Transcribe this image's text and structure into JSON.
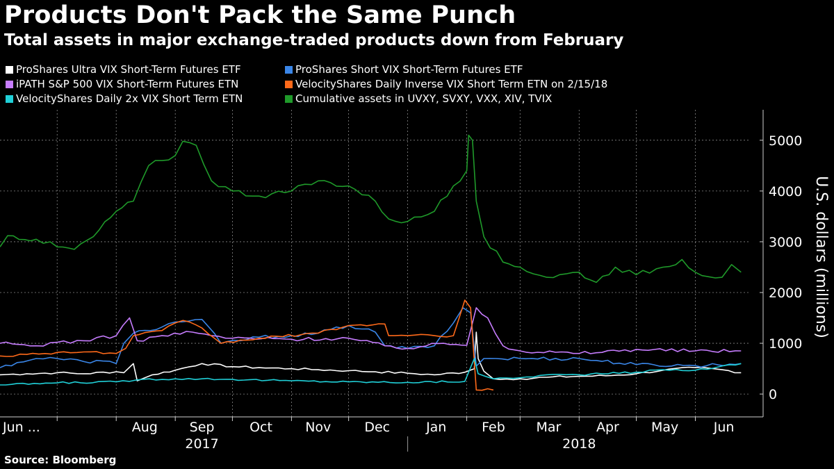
{
  "title": "Products Don't Pack the Same Punch",
  "subtitle": "Total assets in major exchange-traded products down from February",
  "source": "Source: Bloomberg",
  "legend": [
    {
      "label": "ProShares Ultra VIX Short-Term Futures ETF",
      "color": "#ffffff"
    },
    {
      "label": "ProShares Short VIX Short-Term Futures ETF",
      "color": "#3a86e8"
    },
    {
      "label": "iPATH S&P 500 VIX Short-Term Futures ETN",
      "color": "#c77dff"
    },
    {
      "label": "VelocityShares Daily Inverse VIX Short Term ETN  on 2/15/18",
      "color": "#ff6a1a"
    },
    {
      "label": "VelocityShares Daily 2x VIX Short Term ETN",
      "color": "#20d0d8"
    },
    {
      "label": "Cumulative assets in UVXY, SVXY, VXX, XIV, TVIX",
      "color": "#1f9a2a"
    }
  ],
  "chart_data": {
    "type": "line",
    "title": "Products Don't Pack the Same Punch",
    "subtitle": "Total assets in major exchange-traded products down from February",
    "ylabel": "U.S. dollars (millions)",
    "ylim": [
      -450,
      5600
    ],
    "yticks": [
      0,
      1000,
      2000,
      3000,
      4000,
      5000
    ],
    "x_range": [
      "2017-06-01",
      "2018-06-30"
    ],
    "x_tick_labels": [
      "Jun ...",
      "Aug",
      "Sep",
      "Oct",
      "Nov",
      "Dec",
      "Jan",
      "Feb",
      "Mar",
      "Apr",
      "May",
      "Jun"
    ],
    "x_tick_dates": [
      "2017-06-01",
      "2017-08-16",
      "2017-09-15",
      "2017-10-16",
      "2017-11-15",
      "2017-12-16",
      "2018-01-16",
      "2018-02-15",
      "2018-03-16",
      "2018-04-16",
      "2018-05-16",
      "2018-06-16"
    ],
    "x_boundaries": [
      "2017-07-01",
      "2017-08-01",
      "2017-09-01",
      "2017-10-01",
      "2017-11-01",
      "2017-12-01",
      "2018-01-01",
      "2018-02-01",
      "2018-03-01",
      "2018-04-01",
      "2018-05-01",
      "2018-06-01"
    ],
    "year_labels": [
      {
        "label": "2017",
        "date": "2017-09-15"
      },
      {
        "label": "2018",
        "date": "2018-04-01"
      }
    ],
    "year_divider": "2018-01-01",
    "grid": true,
    "legend_position": "top-left",
    "series": [
      {
        "name": "ProShares Ultra VIX Short-Term Futures ETF",
        "color": "#ffffff",
        "points": [
          [
            "2017-06-01",
            380
          ],
          [
            "2017-06-15",
            400
          ],
          [
            "2017-07-01",
            420
          ],
          [
            "2017-07-15",
            400
          ],
          [
            "2017-08-01",
            440
          ],
          [
            "2017-08-05",
            420
          ],
          [
            "2017-08-10",
            600
          ],
          [
            "2017-08-12",
            260
          ],
          [
            "2017-08-20",
            380
          ],
          [
            "2017-09-01",
            470
          ],
          [
            "2017-09-15",
            600
          ],
          [
            "2017-10-01",
            540
          ],
          [
            "2017-10-15",
            520
          ],
          [
            "2017-11-01",
            500
          ],
          [
            "2017-11-15",
            480
          ],
          [
            "2017-12-01",
            460
          ],
          [
            "2017-12-15",
            440
          ],
          [
            "2018-01-01",
            410
          ],
          [
            "2018-01-15",
            380
          ],
          [
            "2018-01-31",
            430
          ],
          [
            "2018-02-05",
            500
          ],
          [
            "2018-02-06",
            1220
          ],
          [
            "2018-02-07",
            700
          ],
          [
            "2018-02-10",
            450
          ],
          [
            "2018-02-15",
            300
          ],
          [
            "2018-03-01",
            300
          ],
          [
            "2018-03-15",
            330
          ],
          [
            "2018-04-01",
            350
          ],
          [
            "2018-04-15",
            360
          ],
          [
            "2018-05-01",
            400
          ],
          [
            "2018-05-15",
            470
          ],
          [
            "2018-06-01",
            520
          ],
          [
            "2018-06-15",
            480
          ],
          [
            "2018-06-25",
            420
          ]
        ]
      },
      {
        "name": "ProShares Short VIX Short-Term Futures ETF",
        "color": "#3a86e8",
        "points": [
          [
            "2017-06-01",
            520
          ],
          [
            "2017-06-10",
            620
          ],
          [
            "2017-06-20",
            700
          ],
          [
            "2017-07-01",
            700
          ],
          [
            "2017-07-15",
            640
          ],
          [
            "2017-07-25",
            650
          ],
          [
            "2017-08-01",
            600
          ],
          [
            "2017-08-05",
            1000
          ],
          [
            "2017-08-10",
            1200
          ],
          [
            "2017-08-25",
            1320
          ],
          [
            "2017-09-01",
            1420
          ],
          [
            "2017-09-15",
            1470
          ],
          [
            "2017-09-25",
            1000
          ],
          [
            "2017-10-15",
            1120
          ],
          [
            "2017-11-01",
            1150
          ],
          [
            "2017-11-15",
            1200
          ],
          [
            "2017-12-01",
            1350
          ],
          [
            "2017-12-15",
            1220
          ],
          [
            "2017-12-20",
            950
          ],
          [
            "2018-01-01",
            900
          ],
          [
            "2018-01-15",
            950
          ],
          [
            "2018-01-25",
            1400
          ],
          [
            "2018-01-30",
            1700
          ],
          [
            "2018-02-03",
            1600
          ],
          [
            "2018-02-06",
            550
          ],
          [
            "2018-02-10",
            700
          ],
          [
            "2018-03-01",
            700
          ],
          [
            "2018-04-01",
            700
          ],
          [
            "2018-05-01",
            580
          ],
          [
            "2018-06-01",
            560
          ],
          [
            "2018-06-25",
            600
          ]
        ]
      },
      {
        "name": "iPATH S&P 500 VIX Short-Term Futures ETN",
        "color": "#c77dff",
        "points": [
          [
            "2017-06-01",
            1000
          ],
          [
            "2017-06-20",
            950
          ],
          [
            "2017-07-01",
            1020
          ],
          [
            "2017-07-15",
            1050
          ],
          [
            "2017-08-01",
            1150
          ],
          [
            "2017-08-08",
            1500
          ],
          [
            "2017-08-12",
            1050
          ],
          [
            "2017-08-25",
            1150
          ],
          [
            "2017-09-10",
            1220
          ],
          [
            "2017-09-20",
            1150
          ],
          [
            "2017-10-01",
            1100
          ],
          [
            "2017-11-01",
            1080
          ],
          [
            "2017-12-01",
            1100
          ],
          [
            "2017-12-20",
            950
          ],
          [
            "2018-01-01",
            900
          ],
          [
            "2018-01-20",
            1000
          ],
          [
            "2018-02-01",
            960
          ],
          [
            "2018-02-06",
            1700
          ],
          [
            "2018-02-12",
            1500
          ],
          [
            "2018-02-20",
            950
          ],
          [
            "2018-03-01",
            850
          ],
          [
            "2018-04-01",
            800
          ],
          [
            "2018-05-01",
            880
          ],
          [
            "2018-06-01",
            850
          ],
          [
            "2018-06-25",
            850
          ]
        ]
      },
      {
        "name": "VelocityShares Daily Inverse VIX Short Term ETN  on 2/15/18",
        "color": "#ff6a1a",
        "points": [
          [
            "2017-06-01",
            750
          ],
          [
            "2017-06-15",
            780
          ],
          [
            "2017-07-01",
            820
          ],
          [
            "2017-07-15",
            830
          ],
          [
            "2017-08-01",
            800
          ],
          [
            "2017-08-06",
            900
          ],
          [
            "2017-08-10",
            1150
          ],
          [
            "2017-08-25",
            1250
          ],
          [
            "2017-09-05",
            1450
          ],
          [
            "2017-09-15",
            1300
          ],
          [
            "2017-09-25",
            1000
          ],
          [
            "2017-10-15",
            1100
          ],
          [
            "2017-11-15",
            1200
          ],
          [
            "2017-12-01",
            1350
          ],
          [
            "2017-12-20",
            1380
          ],
          [
            "2017-12-22",
            1150
          ],
          [
            "2018-01-01",
            1150
          ],
          [
            "2018-01-15",
            1150
          ],
          [
            "2018-01-25",
            1150
          ],
          [
            "2018-01-31",
            1850
          ],
          [
            "2018-02-03",
            1700
          ],
          [
            "2018-02-06",
            80
          ],
          [
            "2018-02-15",
            80
          ]
        ]
      },
      {
        "name": "VelocityShares Daily 2x VIX Short Term ETN",
        "color": "#20d0d8",
        "points": [
          [
            "2017-06-01",
            180
          ],
          [
            "2017-07-01",
            220
          ],
          [
            "2017-08-01",
            240
          ],
          [
            "2017-08-15",
            290
          ],
          [
            "2017-09-01",
            300
          ],
          [
            "2017-09-15",
            300
          ],
          [
            "2017-10-01",
            290
          ],
          [
            "2017-11-01",
            260
          ],
          [
            "2017-12-01",
            240
          ],
          [
            "2018-01-01",
            230
          ],
          [
            "2018-01-31",
            250
          ],
          [
            "2018-02-05",
            700
          ],
          [
            "2018-02-07",
            400
          ],
          [
            "2018-02-15",
            300
          ],
          [
            "2018-03-01",
            320
          ],
          [
            "2018-03-15",
            380
          ],
          [
            "2018-04-01",
            380
          ],
          [
            "2018-05-01",
            430
          ],
          [
            "2018-05-15",
            480
          ],
          [
            "2018-06-01",
            470
          ],
          [
            "2018-06-25",
            600
          ]
        ]
      },
      {
        "name": "Cumulative assets in UVXY, SVXY, VXX, XIV, TVIX",
        "color": "#1f9a2a",
        "points": [
          [
            "2017-06-01",
            2900
          ],
          [
            "2017-06-05",
            3120
          ],
          [
            "2017-06-20",
            3050
          ],
          [
            "2017-07-01",
            2900
          ],
          [
            "2017-07-10",
            2850
          ],
          [
            "2017-07-20",
            3100
          ],
          [
            "2017-08-01",
            3600
          ],
          [
            "2017-08-10",
            3800
          ],
          [
            "2017-08-18",
            4500
          ],
          [
            "2017-08-25",
            4600
          ],
          [
            "2017-09-01",
            4700
          ],
          [
            "2017-09-05",
            4980
          ],
          [
            "2017-09-12",
            4900
          ],
          [
            "2017-09-20",
            4200
          ],
          [
            "2017-10-01",
            4000
          ],
          [
            "2017-10-15",
            3900
          ],
          [
            "2017-11-01",
            4000
          ],
          [
            "2017-11-15",
            4200
          ],
          [
            "2017-12-01",
            4100
          ],
          [
            "2017-12-15",
            3800
          ],
          [
            "2017-12-22",
            3450
          ],
          [
            "2018-01-01",
            3400
          ],
          [
            "2018-01-15",
            3600
          ],
          [
            "2018-01-25",
            4100
          ],
          [
            "2018-02-01",
            4400
          ],
          [
            "2018-02-02",
            5100
          ],
          [
            "2018-02-04",
            5000
          ],
          [
            "2018-02-06",
            3800
          ],
          [
            "2018-02-10",
            3100
          ],
          [
            "2018-02-20",
            2600
          ],
          [
            "2018-03-01",
            2500
          ],
          [
            "2018-03-15",
            2300
          ],
          [
            "2018-04-01",
            2400
          ],
          [
            "2018-04-10",
            2200
          ],
          [
            "2018-04-20",
            2500
          ],
          [
            "2018-05-01",
            2350
          ],
          [
            "2018-05-15",
            2500
          ],
          [
            "2018-05-25",
            2650
          ],
          [
            "2018-06-01",
            2400
          ],
          [
            "2018-06-15",
            2300
          ],
          [
            "2018-06-20",
            2550
          ],
          [
            "2018-06-25",
            2400
          ]
        ]
      }
    ]
  }
}
